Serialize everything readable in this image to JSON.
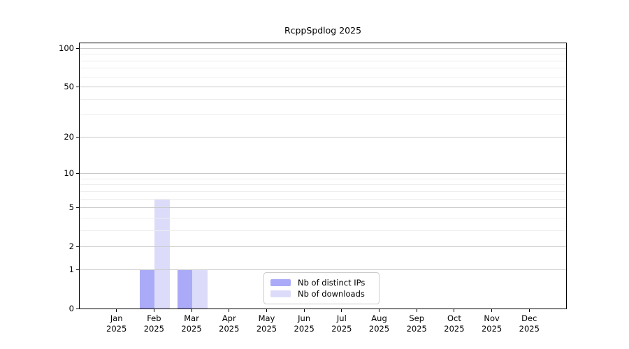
{
  "chart_data": {
    "type": "bar",
    "title": "RcppSpdlog 2025",
    "categories": [
      "Jan",
      "Feb",
      "Mar",
      "Apr",
      "May",
      "Jun",
      "Jul",
      "Aug",
      "Sep",
      "Oct",
      "Nov",
      "Dec"
    ],
    "category_year_label": "2025",
    "series": [
      {
        "name": "Nb of distinct IPs",
        "color": "#aaaaf8",
        "values": [
          0,
          1,
          1,
          0,
          0,
          0,
          0,
          0,
          0,
          0,
          0,
          0
        ]
      },
      {
        "name": "Nb of downloads",
        "color": "#dcdcfa",
        "values": [
          0,
          6,
          1,
          0,
          0,
          0,
          0,
          0,
          0,
          0,
          0,
          0
        ]
      }
    ],
    "y_axis": {
      "scale": "log1p",
      "tick_values": [
        0,
        1,
        2,
        5,
        10,
        20,
        50,
        100
      ],
      "tick_labels": [
        "0",
        "1",
        "2",
        "5",
        "10",
        "20",
        "50",
        "100"
      ],
      "minor_tick_values": [
        3,
        4,
        6,
        7,
        8,
        9,
        30,
        40,
        60,
        70,
        80,
        90
      ],
      "ylim": [
        0,
        112
      ]
    },
    "xlabel": "",
    "ylabel": "",
    "grid": true,
    "legend_position": "bottom-center",
    "colors": {
      "grid_major": "#c9c9c9",
      "grid_minor": "#ededed",
      "spine": "#000000",
      "text": "#000000",
      "legend_border": "#cccccc",
      "background": "#ffffff"
    }
  }
}
